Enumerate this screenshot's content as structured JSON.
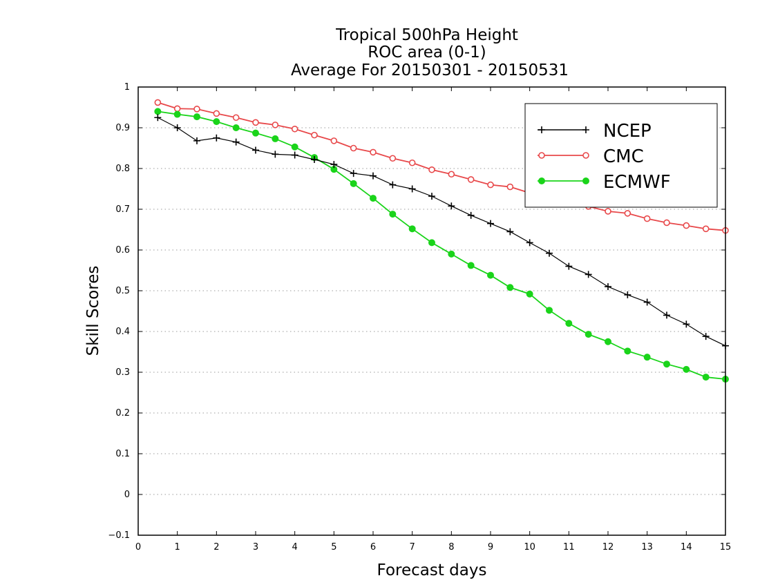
{
  "chart_data": {
    "type": "line",
    "title": [
      "Tropical 500hPa Height",
      "ROC area (0-1)",
      "Average For 20150301 - 20150531"
    ],
    "xlabel": "Forecast days",
    "ylabel": "Skill Scores",
    "xlim": [
      0,
      15
    ],
    "ylim": [
      -0.1,
      1
    ],
    "xticks": [
      "0",
      "1",
      "2",
      "3",
      "4",
      "5",
      "6",
      "7",
      "8",
      "9",
      "10",
      "11",
      "12",
      "13",
      "14",
      "15"
    ],
    "yticks": [
      "−0.1",
      "0",
      "0.1",
      "0.2",
      "0.3",
      "0.4",
      "0.5",
      "0.6",
      "0.7",
      "0.8",
      "0.9",
      "1"
    ],
    "grid": "horizontal-dotted",
    "legend": "top-right",
    "x": [
      0.5,
      1,
      1.5,
      2,
      2.5,
      3,
      3.5,
      4,
      4.5,
      5,
      5.5,
      6,
      6.5,
      7,
      7.5,
      8,
      8.5,
      9,
      9.5,
      10,
      10.5,
      11,
      11.5,
      12,
      12.5,
      13,
      13.5,
      14,
      14.5,
      15
    ],
    "series": [
      {
        "name": "NCEP",
        "color": "#000000",
        "marker": "plus",
        "values": [
          0.925,
          0.9,
          0.868,
          0.875,
          0.865,
          0.845,
          0.835,
          0.833,
          0.822,
          0.81,
          0.788,
          0.782,
          0.76,
          0.75,
          0.732,
          0.708,
          0.685,
          0.665,
          0.645,
          0.618,
          0.592,
          0.56,
          0.54,
          0.51,
          0.49,
          0.472,
          0.44,
          0.418,
          0.388,
          0.365
        ]
      },
      {
        "name": "CMC",
        "color": "#e8484a",
        "marker": "open-circle",
        "values": [
          0.962,
          0.947,
          0.946,
          0.935,
          0.925,
          0.913,
          0.907,
          0.897,
          0.882,
          0.868,
          0.85,
          0.84,
          0.825,
          0.814,
          0.797,
          0.786,
          0.773,
          0.76,
          0.755,
          0.74,
          0.73,
          0.715,
          0.707,
          0.695,
          0.69,
          0.677,
          0.667,
          0.66,
          0.652,
          0.648
        ]
      },
      {
        "name": "ECMWF",
        "color": "#1ad41a",
        "marker": "filled-circle",
        "values": [
          0.94,
          0.933,
          0.927,
          0.915,
          0.9,
          0.887,
          0.873,
          0.853,
          0.827,
          0.798,
          0.763,
          0.727,
          0.688,
          0.652,
          0.618,
          0.59,
          0.562,
          0.538,
          0.508,
          0.492,
          0.452,
          0.42,
          0.393,
          0.375,
          0.352,
          0.337,
          0.32,
          0.307,
          0.288,
          0.283
        ]
      }
    ]
  }
}
